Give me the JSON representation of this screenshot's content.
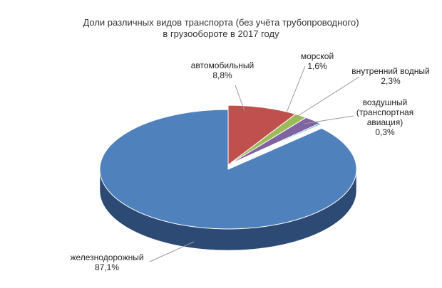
{
  "chart_data": {
    "type": "pie",
    "title": [
      "Доли различных видов транспорта (без учёта трубопроводного)",
      "в грузообороте в 2017 году"
    ],
    "slices": [
      {
        "name": "автомобильный",
        "label_lines": [
          "автомобильный",
          "8,8%"
        ],
        "value": 8.8,
        "color": "#c0504d",
        "side_color": "#8c3431"
      },
      {
        "name": "морской",
        "label_lines": [
          "морской",
          "1,6%"
        ],
        "value": 1.6,
        "color": "#9bbb59",
        "side_color": "#6f8a3b"
      },
      {
        "name": "внутренний водный",
        "label_lines": [
          "внутренний водный",
          "2,3%"
        ],
        "value": 2.3,
        "color": "#8064a2",
        "side_color": "#5a4575"
      },
      {
        "name": "воздушный (транспортная авиация)",
        "label_lines": [
          "воздушный",
          "(транспортная",
          "авиация)",
          "0,3%"
        ],
        "value": 0.3,
        "color": "#4bacc6",
        "side_color": "#2f7a8e"
      },
      {
        "name": "железнодорожный",
        "label_lines": [
          "железнодорожный",
          "87,1%"
        ],
        "value": 87.1,
        "color": "#4f81bd",
        "side_color": "#2c4a73"
      }
    ],
    "legend": "none",
    "data_labels": "outside-with-leader-lines"
  }
}
